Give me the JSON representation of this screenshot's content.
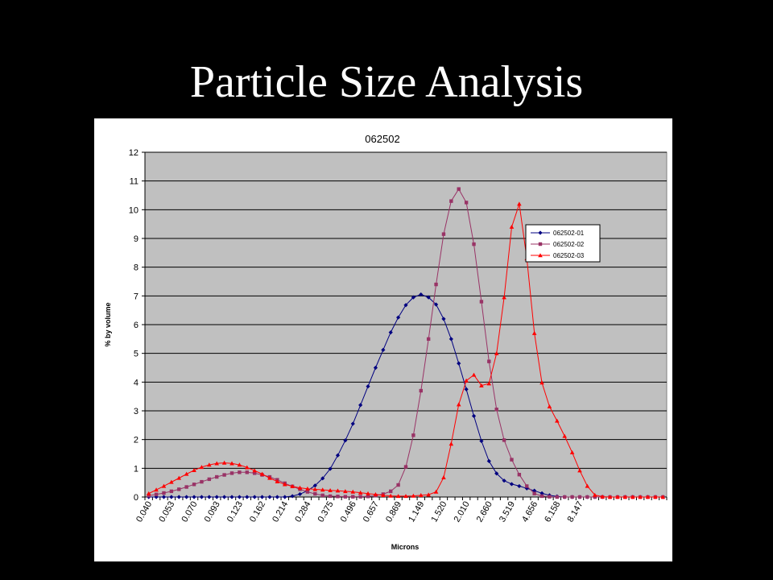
{
  "slide": {
    "title": "Particle Size Analysis"
  },
  "chart_data": {
    "type": "line",
    "title": "062502",
    "xlabel": "Microns",
    "ylabel": "% by volume",
    "ylim": [
      0,
      12
    ],
    "yticks": [
      0,
      1,
      2,
      3,
      4,
      5,
      6,
      7,
      8,
      9,
      10,
      11,
      12
    ],
    "x_tick_labels": [
      "0.040",
      "0.053",
      "0.070",
      "0.093",
      "0.123",
      "0.162",
      "0.214",
      "0.284",
      "0.375",
      "0.496",
      "0.657",
      "0.869",
      "1.149",
      "1.520",
      "2.010",
      "2.660",
      "3.519",
      "4.656",
      "6.158",
      "8.147"
    ],
    "x_scale": "log",
    "plot_background": "#c0c0c0",
    "grid": "horizontal",
    "legend_position": "right",
    "series": [
      {
        "name": "062502-01",
        "color": "#000080",
        "marker": "diamond",
        "values": [
          0,
          0,
          0,
          0,
          0,
          0,
          0,
          0,
          0,
          0,
          0,
          0,
          0,
          0,
          0,
          0,
          0,
          0,
          0,
          0.03,
          0.1,
          0.22,
          0.4,
          0.65,
          0.98,
          1.45,
          1.97,
          2.55,
          3.2,
          3.85,
          4.5,
          5.12,
          5.73,
          6.25,
          6.68,
          6.95,
          7.05,
          6.95,
          6.7,
          6.2,
          5.5,
          4.65,
          3.75,
          2.82,
          1.95,
          1.25,
          0.82,
          0.57,
          0.45,
          0.38,
          0.3,
          0.22,
          0.13,
          0.06,
          0.02,
          0,
          0,
          0,
          0,
          0,
          0,
          0,
          0,
          0,
          0,
          0,
          0,
          0,
          0
        ]
      },
      {
        "name": "062502-02",
        "color": "#993366",
        "marker": "square",
        "values": [
          0.05,
          0.09,
          0.14,
          0.2,
          0.27,
          0.35,
          0.44,
          0.53,
          0.62,
          0.7,
          0.77,
          0.83,
          0.86,
          0.86,
          0.83,
          0.77,
          0.7,
          0.6,
          0.48,
          0.37,
          0.27,
          0.18,
          0.11,
          0.06,
          0.03,
          0.02,
          0.01,
          0.01,
          0.01,
          0.02,
          0.05,
          0.1,
          0.2,
          0.42,
          1.05,
          2.15,
          3.7,
          5.5,
          7.4,
          9.15,
          10.3,
          10.72,
          10.25,
          8.8,
          6.8,
          4.72,
          3.05,
          1.98,
          1.3,
          0.78,
          0.38,
          0.12,
          0.03,
          0.01,
          0,
          0,
          0,
          0,
          0,
          0,
          0,
          0,
          0,
          0,
          0,
          0,
          0,
          0,
          0
        ]
      },
      {
        "name": "062502-03",
        "color": "#ff0000",
        "marker": "triangle",
        "values": [
          0.12,
          0.25,
          0.38,
          0.52,
          0.66,
          0.8,
          0.93,
          1.04,
          1.12,
          1.17,
          1.19,
          1.17,
          1.12,
          1.03,
          0.92,
          0.8,
          0.66,
          0.54,
          0.44,
          0.37,
          0.32,
          0.29,
          0.27,
          0.25,
          0.23,
          0.22,
          0.2,
          0.18,
          0.15,
          0.12,
          0.09,
          0.06,
          0.04,
          0.03,
          0.03,
          0.04,
          0.06,
          0.08,
          0.18,
          0.68,
          1.85,
          3.22,
          4.05,
          4.25,
          3.88,
          3.95,
          5.0,
          6.95,
          9.4,
          10.2,
          8.3,
          5.7,
          3.98,
          3.15,
          2.65,
          2.12,
          1.55,
          0.92,
          0.38,
          0.07,
          0.01,
          0,
          0,
          0,
          0,
          0,
          0,
          0,
          0
        ]
      }
    ]
  }
}
